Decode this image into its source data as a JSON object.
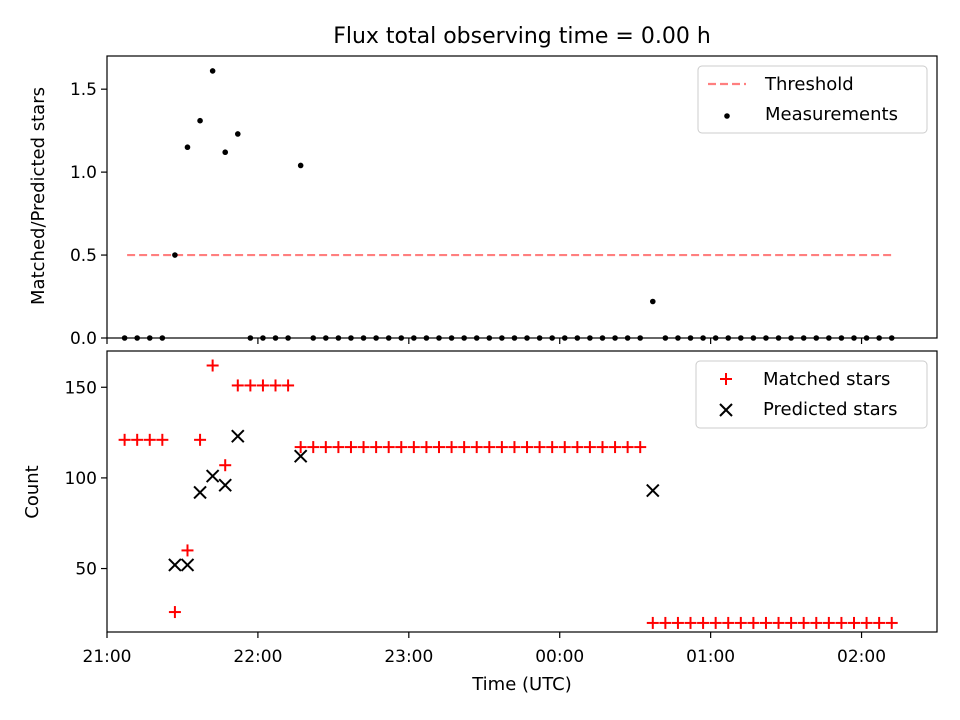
{
  "chart_data": [
    {
      "type": "scatter",
      "title": "Flux total observing time = 0.00 h",
      "xlabel": "",
      "ylabel": "Matched/Predicted stars",
      "ylim": [
        0,
        1.7
      ],
      "xlim": [
        "21:00",
        "02:30"
      ],
      "yticks": [
        0.0,
        0.5,
        1.0,
        1.5
      ],
      "ytick_labels": [
        "0.0",
        "0.5",
        "1.0",
        "1.5"
      ],
      "legend_position": "top-right",
      "grid": false,
      "threshold": {
        "name": "Threshold",
        "value": 0.5,
        "x_start": "21:08",
        "x_end": "02:12",
        "color": "#ff7f7f",
        "style": "dashed"
      },
      "series": [
        {
          "name": "Measurements",
          "color": "#000000",
          "marker": "dot",
          "points": [
            [
              "21:07",
              0.0
            ],
            [
              "21:12",
              0.0
            ],
            [
              "21:17",
              0.0
            ],
            [
              "21:22",
              0.0
            ],
            [
              "21:27",
              0.5
            ],
            [
              "21:32",
              1.15
            ],
            [
              "21:37",
              1.31
            ],
            [
              "21:42",
              1.61
            ],
            [
              "21:47",
              1.12
            ],
            [
              "21:52",
              1.23
            ],
            [
              "21:57",
              0.0
            ],
            [
              "22:02",
              0.0
            ],
            [
              "22:07",
              0.0
            ],
            [
              "22:12",
              0.0
            ],
            [
              "22:17",
              1.04
            ],
            [
              "22:22",
              0.0
            ],
            [
              "22:27",
              0.0
            ],
            [
              "22:32",
              0.0
            ],
            [
              "22:37",
              0.0
            ],
            [
              "22:42",
              0.0
            ],
            [
              "22:47",
              0.0
            ],
            [
              "22:52",
              0.0
            ],
            [
              "22:57",
              0.0
            ],
            [
              "23:02",
              0.0
            ],
            [
              "23:07",
              0.0
            ],
            [
              "23:12",
              0.0
            ],
            [
              "23:17",
              0.0
            ],
            [
              "23:22",
              0.0
            ],
            [
              "23:27",
              0.0
            ],
            [
              "23:32",
              0.0
            ],
            [
              "23:37",
              0.0
            ],
            [
              "23:42",
              0.0
            ],
            [
              "23:47",
              0.0
            ],
            [
              "23:52",
              0.0
            ],
            [
              "23:57",
              0.0
            ],
            [
              "00:02",
              0.0
            ],
            [
              "00:07",
              0.0
            ],
            [
              "00:12",
              0.0
            ],
            [
              "00:17",
              0.0
            ],
            [
              "00:22",
              0.0
            ],
            [
              "00:27",
              0.0
            ],
            [
              "00:32",
              0.0
            ],
            [
              "00:37",
              0.22
            ],
            [
              "00:42",
              0.0
            ],
            [
              "00:47",
              0.0
            ],
            [
              "00:52",
              0.0
            ],
            [
              "00:57",
              0.0
            ],
            [
              "01:02",
              0.0
            ],
            [
              "01:07",
              0.0
            ],
            [
              "01:12",
              0.0
            ],
            [
              "01:17",
              0.0
            ],
            [
              "01:22",
              0.0
            ],
            [
              "01:27",
              0.0
            ],
            [
              "01:32",
              0.0
            ],
            [
              "01:37",
              0.0
            ],
            [
              "01:42",
              0.0
            ],
            [
              "01:47",
              0.0
            ],
            [
              "01:52",
              0.0
            ],
            [
              "01:57",
              0.0
            ],
            [
              "02:02",
              0.0
            ],
            [
              "02:07",
              0.0
            ],
            [
              "02:12",
              0.0
            ]
          ]
        }
      ]
    },
    {
      "type": "scatter",
      "title": "",
      "xlabel": "Time (UTC)",
      "ylabel": "Count",
      "ylim": [
        15,
        170
      ],
      "xlim": [
        "21:00",
        "02:30"
      ],
      "xticks": [
        "21:00",
        "22:00",
        "23:00",
        "00:00",
        "01:00",
        "02:00"
      ],
      "yticks": [
        50,
        100,
        150
      ],
      "ytick_labels": [
        "50",
        "100",
        "150"
      ],
      "legend_position": "top-right",
      "grid": false,
      "series": [
        {
          "name": "Matched stars",
          "color": "#ff0000",
          "marker": "plus",
          "points": [
            [
              "21:07",
              121
            ],
            [
              "21:12",
              121
            ],
            [
              "21:17",
              121
            ],
            [
              "21:22",
              121
            ],
            [
              "21:27",
              26
            ],
            [
              "21:32",
              60
            ],
            [
              "21:37",
              121
            ],
            [
              "21:42",
              162
            ],
            [
              "21:47",
              107
            ],
            [
              "21:52",
              151
            ],
            [
              "21:57",
              151
            ],
            [
              "22:02",
              151
            ],
            [
              "22:07",
              151
            ],
            [
              "22:12",
              151
            ],
            [
              "22:17",
              117
            ],
            [
              "22:22",
              117
            ],
            [
              "22:27",
              117
            ],
            [
              "22:32",
              117
            ],
            [
              "22:37",
              117
            ],
            [
              "22:42",
              117
            ],
            [
              "22:47",
              117
            ],
            [
              "22:52",
              117
            ],
            [
              "22:57",
              117
            ],
            [
              "23:02",
              117
            ],
            [
              "23:07",
              117
            ],
            [
              "23:12",
              117
            ],
            [
              "23:17",
              117
            ],
            [
              "23:22",
              117
            ],
            [
              "23:27",
              117
            ],
            [
              "23:32",
              117
            ],
            [
              "23:37",
              117
            ],
            [
              "23:42",
              117
            ],
            [
              "23:47",
              117
            ],
            [
              "23:52",
              117
            ],
            [
              "23:57",
              117
            ],
            [
              "00:02",
              117
            ],
            [
              "00:07",
              117
            ],
            [
              "00:12",
              117
            ],
            [
              "00:17",
              117
            ],
            [
              "00:22",
              117
            ],
            [
              "00:27",
              117
            ],
            [
              "00:32",
              117
            ],
            [
              "00:37",
              20
            ],
            [
              "00:42",
              20
            ],
            [
              "00:47",
              20
            ],
            [
              "00:52",
              20
            ],
            [
              "00:57",
              20
            ],
            [
              "01:02",
              20
            ],
            [
              "01:07",
              20
            ],
            [
              "01:12",
              20
            ],
            [
              "01:17",
              20
            ],
            [
              "01:22",
              20
            ],
            [
              "01:27",
              20
            ],
            [
              "01:32",
              20
            ],
            [
              "01:37",
              20
            ],
            [
              "01:42",
              20
            ],
            [
              "01:47",
              20
            ],
            [
              "01:52",
              20
            ],
            [
              "01:57",
              20
            ],
            [
              "02:02",
              20
            ],
            [
              "02:07",
              20
            ],
            [
              "02:12",
              20
            ]
          ]
        },
        {
          "name": "Predicted stars",
          "color": "#000000",
          "marker": "x",
          "points": [
            [
              "21:27",
              52
            ],
            [
              "21:32",
              52
            ],
            [
              "21:37",
              92
            ],
            [
              "21:42",
              101
            ],
            [
              "21:47",
              96
            ],
            [
              "21:52",
              123
            ],
            [
              "22:17",
              112
            ],
            [
              "00:37",
              93
            ]
          ]
        }
      ]
    }
  ]
}
